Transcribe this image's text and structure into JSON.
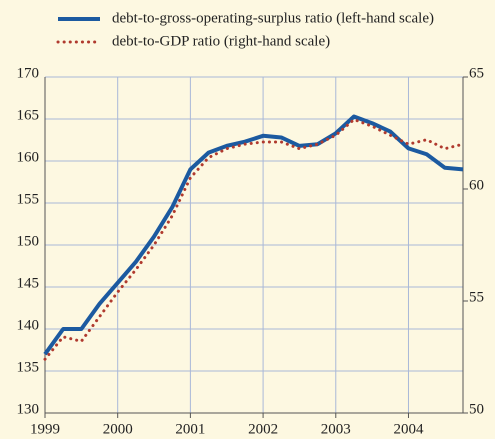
{
  "chart_data": {
    "type": "line",
    "x": [
      1999,
      1999.25,
      1999.5,
      1999.75,
      2000,
      2000.25,
      2000.5,
      2000.75,
      2001,
      2001.25,
      2001.5,
      2001.75,
      2002,
      2002.25,
      2002.5,
      2002.75,
      2003,
      2003.25,
      2003.5,
      2003.75,
      2004,
      2004.25,
      2004.5,
      2004.75
    ],
    "series": [
      {
        "name": "debt-to-gross-operating-surplus ratio (left-hand scale)",
        "color": "#1c5aa0",
        "style": "solid",
        "values": [
          137,
          140,
          140,
          143,
          145.5,
          148,
          151,
          154.5,
          159,
          161,
          161.8,
          162.3,
          163,
          162.8,
          161.8,
          162,
          163.3,
          165.3,
          164.5,
          163.5,
          161.5,
          160.8,
          159.2,
          159
        ]
      },
      {
        "name": "debt-to-GDP ratio (right-hand scale)",
        "color": "#b03a2e",
        "style": "dotted",
        "axis": "y2",
        "values": [
          52.4,
          53.4,
          53.2,
          54.3,
          55.4,
          56.4,
          57.5,
          58.8,
          60.5,
          61.4,
          61.8,
          62.0,
          62.1,
          62.1,
          61.8,
          62.0,
          62.4,
          63.1,
          62.8,
          62.4,
          62.0,
          62.2,
          61.8,
          62.0
        ]
      }
    ],
    "xlim": [
      1999,
      2004.75
    ],
    "xticks": [
      1999,
      2000,
      2001,
      2002,
      2003,
      2004
    ],
    "ylim": [
      130,
      170
    ],
    "yticks": [
      130,
      135,
      140,
      145,
      150,
      155,
      160,
      165,
      170
    ],
    "y2lim": [
      50,
      65
    ],
    "y2ticks": [
      50,
      55,
      60,
      65
    ],
    "grid": true,
    "legend": "top"
  }
}
